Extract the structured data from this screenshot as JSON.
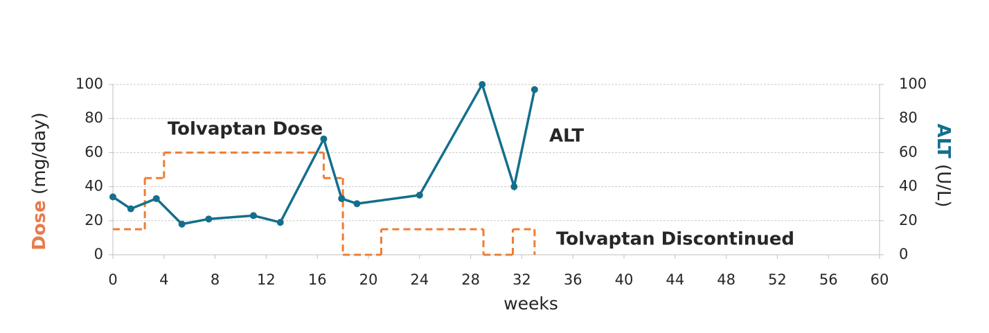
{
  "chart_data": {
    "type": "line",
    "xlabel": "weeks",
    "ylabel": [
      "Dose",
      "(mg/day)"
    ],
    "ylabel_color": "#e97a4d",
    "y2label": [
      "ALT",
      "(U/L)"
    ],
    "y2label_color": "#136f8c",
    "xlim": [
      0,
      60
    ],
    "xticks": [
      0,
      4,
      8,
      12,
      16,
      20,
      24,
      28,
      32,
      36,
      40,
      44,
      48,
      52,
      56,
      60
    ],
    "ylim": [
      0,
      100
    ],
    "yticks": [
      0,
      20,
      40,
      60,
      80,
      100
    ],
    "y2lim": [
      0,
      100
    ],
    "y2ticks": [
      0,
      20,
      40,
      60,
      80,
      100
    ],
    "grid": true,
    "series": [
      {
        "name": "Tolvaptan Dose",
        "color": "#ee7d31",
        "drawstyle": "steps-post",
        "linestyle": "dashed",
        "x": [
          0,
          2.5,
          4,
          16.5,
          18,
          21,
          29,
          31.3,
          33
        ],
        "values": [
          15,
          45,
          60,
          45,
          0,
          15,
          0,
          15,
          0
        ]
      },
      {
        "name": "ALT",
        "color": "#136f8c",
        "axis": "y2",
        "marker": "circle",
        "x": [
          0,
          1.4,
          3.4,
          5.4,
          7.5,
          11,
          13.1,
          16.5,
          17.9,
          19.1,
          24,
          28.9,
          31.4,
          33
        ],
        "values": [
          34,
          27,
          33,
          18,
          21,
          23,
          19,
          68,
          33,
          30,
          35,
          100,
          40,
          97
        ]
      }
    ],
    "annotations": [
      {
        "text": "Tolvaptan Discontinued",
        "color": "#e97a4d"
      }
    ]
  }
}
